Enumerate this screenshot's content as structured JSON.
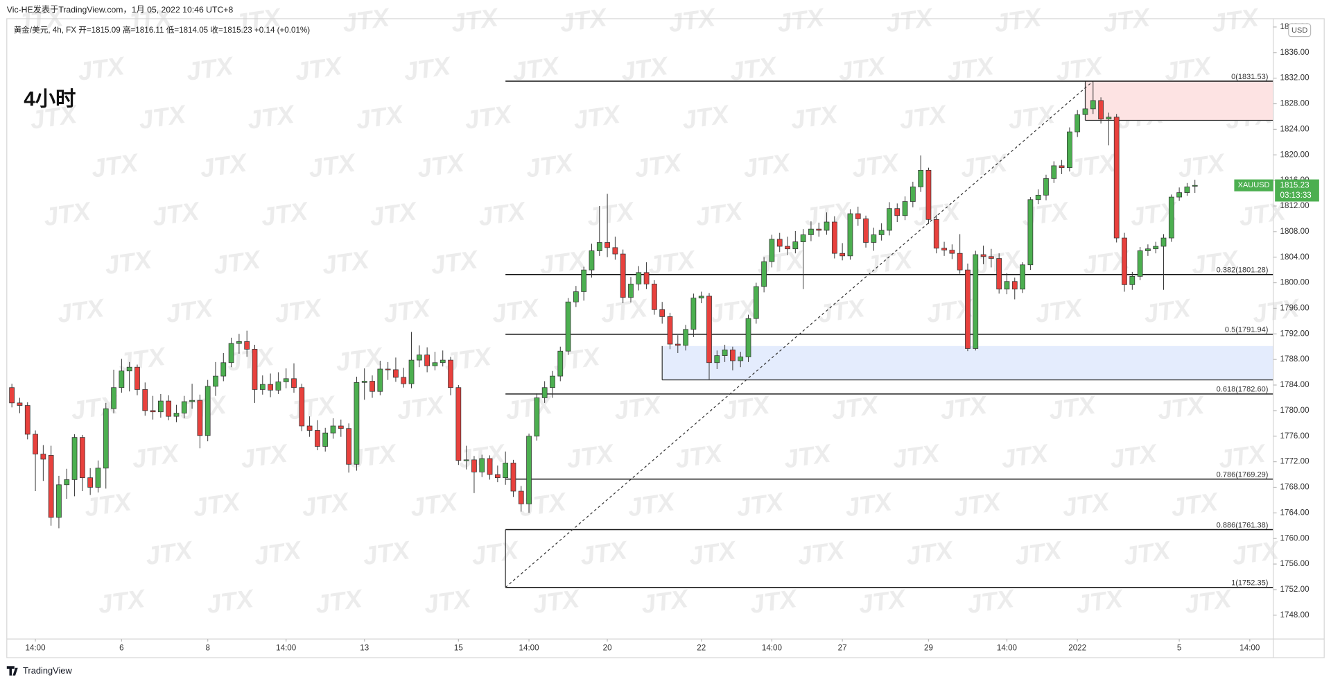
{
  "byline": "Vic-HE发表于TradingView.com，1月 05, 2022 10:46 UTC+8",
  "legend": "黄金/美元, 4h, FX  开=1815.09 高=1816.11 低=1814.05 收=1815.23 +0.14 (+0.01%)",
  "footer": "TradingView",
  "chart_data": {
    "type": "candlestick",
    "title": "4小时",
    "up_color": "#4caf50",
    "down_color": "#e8413d",
    "watermark": "JTX",
    "currency": "USD",
    "last_price": {
      "symbol": "XAUUSD",
      "value": 1815.23,
      "countdown": "03:13:33",
      "color": "#4caf50"
    },
    "open": [
      1783.6,
      1781.2,
      1780.8,
      1776.3,
      1773.2,
      1773.0,
      1763.3,
      1768.4,
      1769.2,
      1775.8,
      1769.5,
      1768.0,
      1771.0,
      1780.3,
      1783.6,
      1786.2,
      1786.8,
      1783.3,
      1780.0,
      1779.8,
      1781.5,
      1779.1,
      1779.6,
      1781.4,
      1781.6,
      1776.1,
      1783.8,
      1785.4,
      1787.5,
      1790.5,
      1790.8,
      1789.6,
      1783.3,
      1784.1,
      1783.2,
      1784.5,
      1785.0,
      1783.6,
      1777.6,
      1776.9,
      1774.4,
      1776.5,
      1777.6,
      1777.2,
      1771.6,
      1784.4,
      1784.6,
      1783.0,
      1786.5,
      1786.4,
      1785.2,
      1784.2,
      1787.9,
      1788.7,
      1787.0,
      1787.5,
      1787.9,
      1783.6,
      1772.2,
      1772.3,
      1770.4,
      1772.5,
      1770.0,
      1769.5,
      1771.8,
      1767.4,
      1765.4,
      1776.0,
      1782.0,
      1783.6,
      1785.4,
      1789.3,
      1797.0,
      1798.6,
      1802.0,
      1805.0,
      1806.3,
      1805.5,
      1804.5,
      1797.7,
      1799.8,
      1801.6,
      1799.8,
      1795.8,
      1794.7,
      1790.4,
      1790.2,
      1792.7,
      1797.6,
      1797.9,
      1787.5,
      1788.6,
      1789.5,
      1787.8,
      1788.4,
      1794.4,
      1799.4,
      1803.3,
      1806.8,
      1805.7,
      1805.3,
      1806.4,
      1807.5,
      1808.4,
      1808.2,
      1809.5,
      1804.6,
      1804.2,
      1810.8,
      1810.0,
      1806.3,
      1807.5,
      1808.2,
      1811.6,
      1810.5,
      1812.7,
      1815.0,
      1817.6,
      1809.9,
      1805.4,
      1805.1,
      1804.6,
      1802.0,
      1789.7,
      1804.4,
      1804.1,
      1803.8,
      1799.0,
      1800.2,
      1799.0,
      1802.8,
      1813.0,
      1813.7,
      1816.3,
      1818.3,
      1818.0,
      1823.6,
      1826.3,
      1827.2,
      1828.5,
      1825.6,
      1825.9,
      1807.0,
      1799.7,
      1801.0,
      1805.0,
      1805.3,
      1805.7,
      1807.0,
      1813.4,
      1814.1,
      1815.09
    ],
    "high": [
      1784.2,
      1782.0,
      1781.3,
      1776.9,
      1774.6,
      1774.5,
      1769.8,
      1770.9,
      1776.3,
      1776.2,
      1771.0,
      1772.2,
      1781.2,
      1786.4,
      1788.1,
      1787.6,
      1787.2,
      1784.4,
      1782.3,
      1782.6,
      1782.4,
      1780.9,
      1782.3,
      1784.2,
      1782.5,
      1784.8,
      1787.6,
      1789.0,
      1791.4,
      1792.0,
      1792.5,
      1790.3,
      1785.5,
      1785.8,
      1786.0,
      1786.6,
      1787.4,
      1784.2,
      1779.1,
      1778.5,
      1777.3,
      1778.8,
      1778.6,
      1778.0,
      1785.3,
      1786.6,
      1785.5,
      1787.8,
      1787.6,
      1788.3,
      1786.7,
      1792.3,
      1790.2,
      1789.9,
      1789.2,
      1789.4,
      1788.4,
      1784.0,
      1774.5,
      1772.9,
      1773.1,
      1773.0,
      1771.4,
      1773.6,
      1772.3,
      1768.2,
      1776.4,
      1782.7,
      1784.6,
      1786.2,
      1790.0,
      1797.6,
      1799.5,
      1802.5,
      1806.1,
      1812.0,
      1813.9,
      1807.2,
      1805.2,
      1800.9,
      1802.6,
      1803.2,
      1800.4,
      1797.0,
      1795.3,
      1791.8,
      1793.4,
      1798.3,
      1798.6,
      1798.4,
      1789.4,
      1790.3,
      1790.0,
      1789.2,
      1795.0,
      1800.0,
      1804.0,
      1807.5,
      1807.8,
      1807.2,
      1808.1,
      1808.4,
      1809.6,
      1809.4,
      1811.0,
      1810.4,
      1806.2,
      1811.5,
      1811.9,
      1810.5,
      1808.6,
      1809.3,
      1812.6,
      1812.4,
      1813.5,
      1815.8,
      1819.9,
      1818.0,
      1810.6,
      1806.4,
      1806.0,
      1807.6,
      1803.0,
      1805.0,
      1805.8,
      1805.3,
      1804.6,
      1801.5,
      1800.8,
      1803.2,
      1813.4,
      1814.6,
      1816.9,
      1819.0,
      1819.2,
      1824.3,
      1827.0,
      1828.2,
      1831.53,
      1829.0,
      1826.6,
      1826.4,
      1807.8,
      1801.7,
      1805.6,
      1806.0,
      1806.4,
      1807.6,
      1813.8,
      1814.9,
      1815.6,
      1816.11
    ],
    "low": [
      1780.5,
      1779.6,
      1775.5,
      1767.4,
      1769.0,
      1762.0,
      1761.6,
      1766.2,
      1766.6,
      1767.4,
      1766.8,
      1767.2,
      1767.8,
      1779.6,
      1782.8,
      1783.0,
      1782.4,
      1779.2,
      1778.6,
      1778.9,
      1778.5,
      1778.2,
      1778.8,
      1780.3,
      1774.1,
      1775.2,
      1782.3,
      1784.6,
      1786.8,
      1788.9,
      1788.4,
      1781.2,
      1782.5,
      1782.1,
      1782.6,
      1783.5,
      1782.8,
      1776.8,
      1775.9,
      1773.8,
      1773.6,
      1775.6,
      1775.9,
      1770.3,
      1770.6,
      1781.7,
      1782.0,
      1782.4,
      1784.8,
      1784.5,
      1783.6,
      1783.5,
      1786.8,
      1786.0,
      1786.3,
      1786.9,
      1782.4,
      1771.5,
      1770.8,
      1767.1,
      1769.6,
      1769.2,
      1768.8,
      1768.4,
      1766.5,
      1764.2,
      1764.0,
      1775.3,
      1781.2,
      1782.0,
      1784.6,
      1788.7,
      1796.2,
      1797.2,
      1800.8,
      1804.2,
      1804.0,
      1803.6,
      1796.8,
      1796.9,
      1798.8,
      1799.0,
      1795.0,
      1793.6,
      1789.6,
      1789.0,
      1789.4,
      1791.5,
      1796.8,
      1784.9,
      1786.5,
      1787.6,
      1786.3,
      1786.8,
      1787.6,
      1793.6,
      1798.5,
      1802.4,
      1804.8,
      1804.3,
      1804.6,
      1799.0,
      1806.5,
      1807.2,
      1807.5,
      1803.8,
      1803.5,
      1803.6,
      1808.9,
      1805.5,
      1805.0,
      1806.6,
      1807.4,
      1809.5,
      1809.8,
      1811.8,
      1814.2,
      1809.2,
      1804.6,
      1804.2,
      1803.7,
      1801.4,
      1789.3,
      1789.4,
      1802.9,
      1802.4,
      1798.3,
      1798.2,
      1797.4,
      1798.4,
      1802.0,
      1812.3,
      1812.9,
      1815.6,
      1817.0,
      1817.4,
      1822.8,
      1825.5,
      1826.4,
      1824.9,
      1821.5,
      1806.3,
      1798.6,
      1798.9,
      1800.4,
      1804.2,
      1804.6,
      1798.9,
      1806.4,
      1812.8,
      1813.6,
      1814.05
    ],
    "close": [
      1781.2,
      1780.8,
      1776.3,
      1773.2,
      1772.4,
      1763.3,
      1768.4,
      1769.2,
      1775.8,
      1769.5,
      1768.0,
      1771.0,
      1780.3,
      1783.6,
      1786.2,
      1786.8,
      1783.3,
      1780.0,
      1779.8,
      1781.5,
      1779.1,
      1779.6,
      1781.4,
      1781.6,
      1776.1,
      1783.8,
      1785.4,
      1787.5,
      1790.5,
      1790.8,
      1789.6,
      1783.3,
      1784.1,
      1783.2,
      1784.5,
      1785.0,
      1783.6,
      1777.6,
      1776.9,
      1774.4,
      1776.5,
      1777.6,
      1777.2,
      1771.6,
      1784.4,
      1784.6,
      1783.0,
      1786.5,
      1786.4,
      1785.2,
      1784.2,
      1787.9,
      1788.7,
      1787.0,
      1787.5,
      1787.9,
      1783.6,
      1772.2,
      1772.3,
      1770.4,
      1772.5,
      1770.0,
      1769.5,
      1771.8,
      1767.4,
      1765.4,
      1776.0,
      1782.0,
      1783.6,
      1785.4,
      1789.3,
      1797.0,
      1798.6,
      1802.0,
      1805.0,
      1806.3,
      1805.5,
      1804.5,
      1797.7,
      1799.8,
      1801.6,
      1799.8,
      1795.8,
      1794.7,
      1790.4,
      1790.2,
      1792.7,
      1797.6,
      1797.9,
      1787.5,
      1788.6,
      1789.5,
      1787.8,
      1788.4,
      1794.4,
      1799.4,
      1803.3,
      1806.8,
      1805.7,
      1805.3,
      1806.4,
      1807.5,
      1808.4,
      1808.2,
      1809.5,
      1804.6,
      1804.2,
      1810.8,
      1810.0,
      1806.3,
      1807.5,
      1808.2,
      1811.6,
      1810.5,
      1812.7,
      1815.0,
      1817.6,
      1809.9,
      1805.4,
      1805.1,
      1804.6,
      1802.0,
      1789.7,
      1804.4,
      1804.1,
      1803.8,
      1799.0,
      1800.2,
      1799.0,
      1802.8,
      1813.0,
      1813.7,
      1816.3,
      1818.3,
      1818.0,
      1823.6,
      1826.3,
      1827.2,
      1828.5,
      1825.6,
      1825.9,
      1807.0,
      1799.7,
      1801.0,
      1805.0,
      1805.3,
      1805.7,
      1807.0,
      1813.4,
      1814.1,
      1815.0,
      1815.23
    ],
    "xlim": [
      -0.65,
      161
    ],
    "xticks": [
      {
        "value": 3,
        "label": "14:00"
      },
      {
        "value": 14,
        "label": "6"
      },
      {
        "value": 25,
        "label": "8"
      },
      {
        "value": 35,
        "label": "14:00"
      },
      {
        "value": 45,
        "label": "13"
      },
      {
        "value": 57,
        "label": "15"
      },
      {
        "value": 66,
        "label": "14:00"
      },
      {
        "value": 76,
        "label": "20"
      },
      {
        "value": 88,
        "label": "22"
      },
      {
        "value": 97,
        "label": "14:00"
      },
      {
        "value": 106,
        "label": "27"
      },
      {
        "value": 117,
        "label": "29"
      },
      {
        "value": 127,
        "label": "14:00"
      },
      {
        "value": 136,
        "label": "2022"
      },
      {
        "value": 149,
        "label": "5"
      },
      {
        "value": 158,
        "label": "14:00"
      }
    ],
    "ylim": [
      1744.28,
      1841.3
    ],
    "yticks": [
      {
        "value": 1748,
        "label": "1748.00"
      },
      {
        "value": 1752,
        "label": "1752.00"
      },
      {
        "value": 1756,
        "label": "1756.00"
      },
      {
        "value": 1760,
        "label": "1760.00"
      },
      {
        "value": 1764,
        "label": "1764.00"
      },
      {
        "value": 1768,
        "label": "1768.00"
      },
      {
        "value": 1772,
        "label": "1772.00"
      },
      {
        "value": 1776,
        "label": "1776.00"
      },
      {
        "value": 1780,
        "label": "1780.00"
      },
      {
        "value": 1784,
        "label": "1784.00"
      },
      {
        "value": 1788,
        "label": "1788.00"
      },
      {
        "value": 1792,
        "label": "1792.00"
      },
      {
        "value": 1796,
        "label": "1796.00"
      },
      {
        "value": 1800,
        "label": "1800.00"
      },
      {
        "value": 1804,
        "label": "1804.00"
      },
      {
        "value": 1808,
        "label": "1808.00"
      },
      {
        "value": 1812,
        "label": "1812.00"
      },
      {
        "value": 1816,
        "label": "1816.00"
      },
      {
        "value": 1820,
        "label": "1820.00"
      },
      {
        "value": 1824,
        "label": "1824.00"
      },
      {
        "value": 1828,
        "label": "1828.00"
      },
      {
        "value": 1832,
        "label": "1832.00"
      },
      {
        "value": 1836,
        "label": "1836.00"
      },
      {
        "value": 1840,
        "label": "1840.00"
      }
    ],
    "fibonacci": {
      "anchor_x": [
        63,
        138
      ],
      "levels": [
        {
          "value": 1831.53,
          "label": "0(1831.53)"
        },
        {
          "value": 1801.28,
          "label": "0.382(1801.28)"
        },
        {
          "value": 1791.94,
          "label": "0.5(1791.94)"
        },
        {
          "value": 1782.6,
          "label": "0.618(1782.60)"
        },
        {
          "value": 1769.29,
          "label": "0.786(1769.29)"
        },
        {
          "value": 1761.38,
          "label": "0.886(1761.38)"
        },
        {
          "value": 1752.35,
          "label": "1(1752.35)"
        }
      ]
    },
    "zones": [
      {
        "x_from": 137,
        "top": 1831.53,
        "bottom": 1825.4,
        "color": "#fde3e3"
      },
      {
        "x_from": 83,
        "top": 1790.1,
        "bottom": 1784.8,
        "color": "#e4ecfd"
      }
    ]
  }
}
